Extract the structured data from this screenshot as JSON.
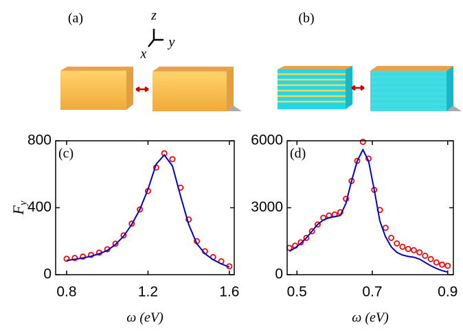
{
  "figure": {
    "panel_a": "(a)",
    "panel_b": "(b)",
    "axis_z": "z",
    "axis_y": "y",
    "axis_x": "x"
  },
  "chart_data": [
    {
      "type": "line",
      "label": "(c)",
      "xlabel": "ω (eV)",
      "ylabel": "F",
      "ylabel_sub": "y",
      "xlim": [
        0.746,
        1.624
      ],
      "ylim": [
        0,
        800
      ],
      "xticks": [
        0.8,
        1.2,
        1.6
      ],
      "yticks": [
        0,
        400,
        800
      ],
      "x": [
        0.8,
        0.84,
        0.88,
        0.92,
        0.96,
        1.0,
        1.04,
        1.08,
        1.12,
        1.16,
        1.2,
        1.24,
        1.28,
        1.32,
        1.36,
        1.4,
        1.44,
        1.48,
        1.52,
        1.56,
        1.6
      ],
      "series": [
        {
          "style": "markers",
          "color": "#ff0000",
          "values": [
            95,
            100,
            108,
            118,
            132,
            152,
            185,
            235,
            305,
            390,
            500,
            640,
            725,
            690,
            520,
            330,
            200,
            140,
            105,
            80,
            50
          ]
        },
        {
          "style": "line",
          "color": "#0000cc",
          "values": [
            85,
            92,
            100,
            110,
            125,
            145,
            180,
            230,
            300,
            390,
            510,
            660,
            715,
            650,
            470,
            300,
            185,
            125,
            90,
            65,
            45
          ]
        }
      ]
    },
    {
      "type": "line",
      "label": "(d)",
      "xlabel": "ω (eV)",
      "xlim": [
        0.474,
        0.915
      ],
      "ylim": [
        0,
        6000
      ],
      "xticks": [
        0.5,
        0.7,
        0.9
      ],
      "yticks": [
        0,
        3000,
        6000
      ],
      "x": [
        0.48,
        0.495,
        0.51,
        0.525,
        0.54,
        0.555,
        0.57,
        0.585,
        0.6,
        0.615,
        0.63,
        0.645,
        0.66,
        0.675,
        0.69,
        0.705,
        0.72,
        0.735,
        0.75,
        0.765,
        0.78,
        0.795,
        0.81,
        0.825,
        0.84,
        0.855,
        0.87,
        0.885,
        0.9
      ],
      "series": [
        {
          "style": "markers",
          "color": "#ff0000",
          "values": [
            1200,
            1300,
            1450,
            1650,
            1950,
            2250,
            2550,
            2650,
            2700,
            2800,
            3400,
            4200,
            5100,
            5950,
            5200,
            3800,
            2900,
            2100,
            1650,
            1400,
            1250,
            1150,
            1100,
            1000,
            850,
            700,
            550,
            450,
            400
          ]
        },
        {
          "style": "line",
          "color": "#0000cc",
          "values": [
            1050,
            1200,
            1400,
            1650,
            1950,
            2250,
            2450,
            2550,
            2600,
            2650,
            3200,
            4200,
            5100,
            5600,
            5100,
            3800,
            2400,
            1700,
            1250,
            1000,
            880,
            820,
            780,
            700,
            550,
            400,
            280,
            180,
            120
          ]
        }
      ]
    }
  ]
}
